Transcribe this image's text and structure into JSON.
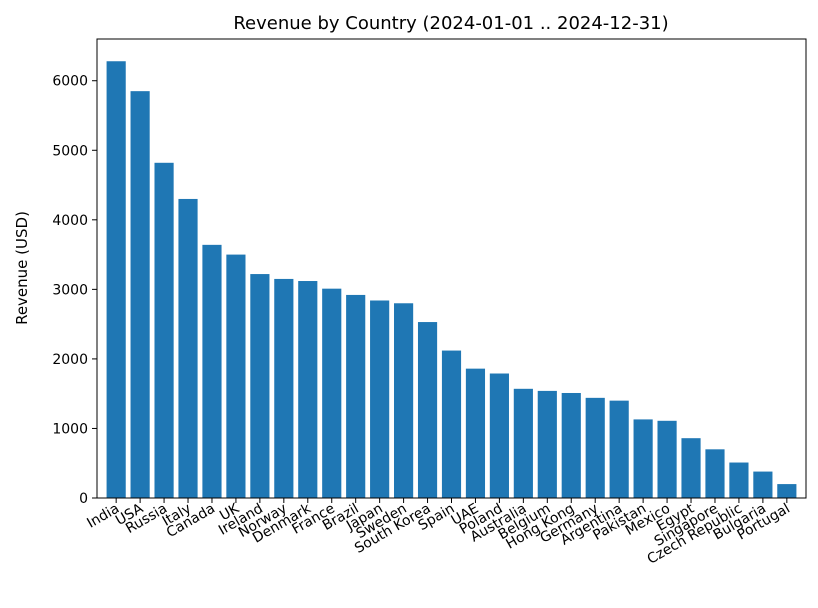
{
  "chart_data": {
    "type": "bar",
    "title": "Revenue by Country (2024-01-01 .. 2024-12-31)",
    "xlabel": "",
    "ylabel": "Revenue (USD)",
    "ylim": [
      0,
      6600
    ],
    "yticks": [
      0,
      1000,
      2000,
      3000,
      4000,
      5000,
      6000
    ],
    "grid": false,
    "color": "#1f77b4",
    "categories": [
      "India",
      "USA",
      "Russia",
      "Italy",
      "Canada",
      "UK",
      "Ireland",
      "Norway",
      "Denmark",
      "France",
      "Brazil",
      "Japan",
      "Sweden",
      "South Korea",
      "Spain",
      "UAE",
      "Poland",
      "Australia",
      "Belgium",
      "Hong Kong",
      "Germany",
      "Argentina",
      "Pakistan",
      "Mexico",
      "Egypt",
      "Singapore",
      "Czech Republic",
      "Bulgaria",
      "Portugal"
    ],
    "values": [
      6280,
      5850,
      4820,
      4300,
      3640,
      3500,
      3220,
      3150,
      3120,
      3010,
      2920,
      2840,
      2800,
      2530,
      2120,
      1860,
      1790,
      1570,
      1540,
      1510,
      1440,
      1400,
      1130,
      1110,
      860,
      700,
      510,
      380,
      200
    ]
  }
}
